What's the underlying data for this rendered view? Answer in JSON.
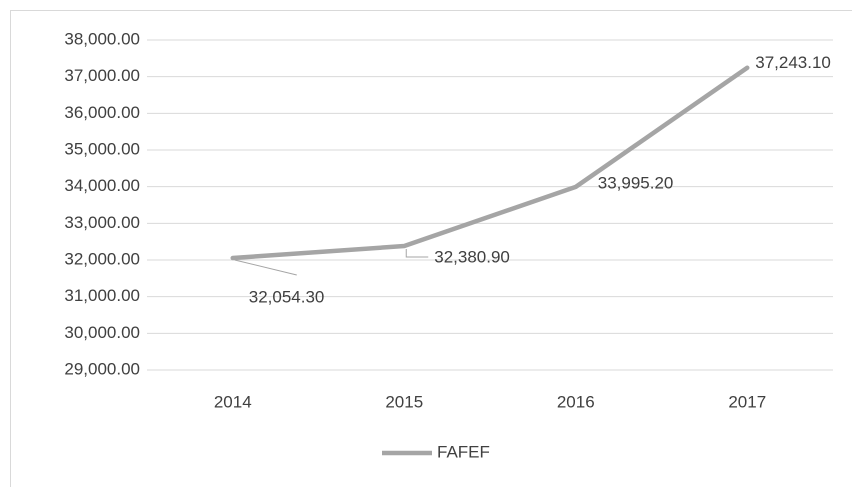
{
  "chart_data": {
    "type": "line",
    "categories": [
      "2014",
      "2015",
      "2016",
      "2017"
    ],
    "series": [
      {
        "name": "FAFEF",
        "color": "#a5a5a5",
        "values": [
          32054.3,
          32380.9,
          33995.2,
          37243.1
        ],
        "value_labels": [
          "32,054.30",
          "32,380.90",
          "33,995.20",
          "37,243.10"
        ]
      }
    ],
    "ylim": [
      29000,
      38000
    ],
    "yticks": [
      {
        "value": 29000,
        "label": "29,000.00"
      },
      {
        "value": 30000,
        "label": "30,000.00"
      },
      {
        "value": 31000,
        "label": "31,000.00"
      },
      {
        "value": 32000,
        "label": "32,000.00"
      },
      {
        "value": 33000,
        "label": "33,000.00"
      },
      {
        "value": 34000,
        "label": "34,000.00"
      },
      {
        "value": 35000,
        "label": "35,000.00"
      },
      {
        "value": 36000,
        "label": "36,000.00"
      },
      {
        "value": 37000,
        "label": "37,000.00"
      },
      {
        "value": 38000,
        "label": "38,000.00"
      }
    ],
    "grid": true,
    "legend": "bottom"
  }
}
